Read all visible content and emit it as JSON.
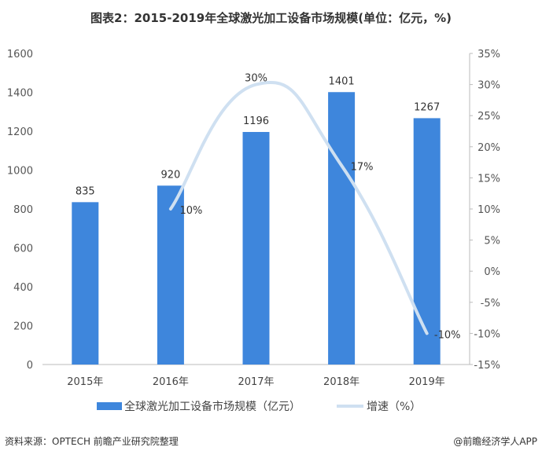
{
  "chart_data": {
    "type": "bar",
    "title": "图表2：2015-2019年全球激光加工设备市场规模(单位：亿元，%)",
    "categories": [
      "2015年",
      "2016年",
      "2017年",
      "2018年",
      "2019年"
    ],
    "series": [
      {
        "name": "全球激光加工设备市场规模（亿元）",
        "type": "bar",
        "axis": "left",
        "values": [
          835,
          920,
          1196,
          1401,
          1267
        ],
        "labels": [
          "835",
          "920",
          "1196",
          "1401",
          "1267"
        ],
        "color": "#3e86dc"
      },
      {
        "name": "增速（%）",
        "type": "line",
        "axis": "right",
        "smooth": true,
        "values": [
          null,
          10,
          30,
          17,
          -10
        ],
        "labels": [
          "",
          "10%",
          "30%",
          "17%",
          "-10%"
        ],
        "color": "#cfe0f1"
      }
    ],
    "left_axis": {
      "ylim": [
        0,
        1600
      ],
      "ticks": [
        "0",
        "200",
        "400",
        "600",
        "800",
        "1000",
        "1200",
        "1400",
        "1600"
      ]
    },
    "right_axis": {
      "ylim": [
        -15,
        35
      ],
      "ticks": [
        "-15%",
        "-10%",
        "-5%",
        "0%",
        "5%",
        "10%",
        "15%",
        "20%",
        "25%",
        "30%",
        "35%"
      ]
    },
    "grid": false,
    "legend": "bottom"
  },
  "footer": {
    "source": "资料来源：OPTECH 前瞻产业研究院整理",
    "credit": "@前瞻经济学人APP"
  }
}
